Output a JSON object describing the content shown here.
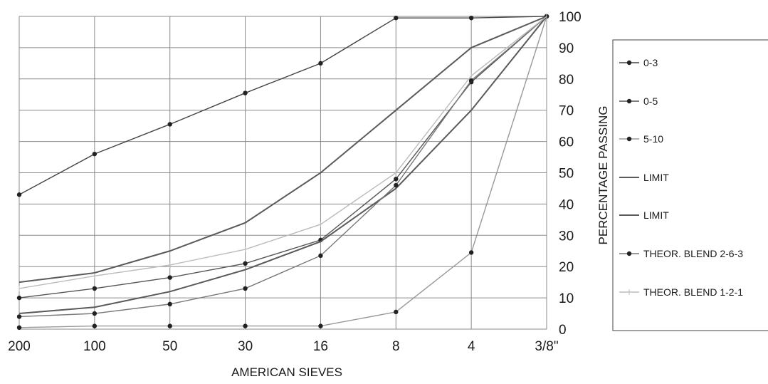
{
  "chart_data": {
    "type": "line",
    "title": "",
    "xlabel": "AMERICAN SIEVES",
    "ylabel": "PERCENTAGE  PASSING",
    "categories": [
      "200",
      "100",
      "50",
      "30",
      "16",
      "8",
      "4",
      "3/8\""
    ],
    "ylim": [
      0,
      100
    ],
    "yticks": [
      0,
      10,
      20,
      30,
      40,
      50,
      60,
      70,
      80,
      90,
      100
    ],
    "grid": true,
    "y_axis_side": "right",
    "legend_position": "right",
    "series": [
      {
        "name": "0-3",
        "color": "#444444",
        "values": [
          43,
          56,
          65.5,
          75.5,
          85,
          99.5,
          99.5,
          100
        ],
        "marker": "dot"
      },
      {
        "name": "0-5",
        "color": "#555555",
        "values": [
          10,
          13,
          16.5,
          21,
          28.5,
          48,
          79,
          100
        ],
        "marker": "dot"
      },
      {
        "name": " 5-10",
        "color": "#999999",
        "values": [
          0.5,
          1,
          1,
          1,
          1,
          5.5,
          24.5,
          100
        ],
        "marker": "dot"
      },
      {
        "name": "LIMIT",
        "color": "#5a5a5a",
        "values": [
          15,
          18,
          25,
          34,
          50,
          70,
          90,
          100
        ],
        "marker": "none"
      },
      {
        "name": "LIMIT",
        "color": "#5a5a5a",
        "values": [
          5,
          7,
          12,
          19,
          28,
          45,
          70,
          100
        ],
        "marker": "none"
      },
      {
        "name": "THEOR. BLEND 2-6-3",
        "color": "#777777",
        "values": [
          4,
          5,
          8,
          13,
          23.5,
          46,
          79.5,
          100
        ],
        "marker": "dot"
      },
      {
        "name": "THEOR. BLEND 1-2-1",
        "color": "#bbbbbb",
        "values": [
          13,
          17,
          20.5,
          25.5,
          33.5,
          50,
          81,
          100
        ],
        "marker": "tick"
      }
    ]
  }
}
